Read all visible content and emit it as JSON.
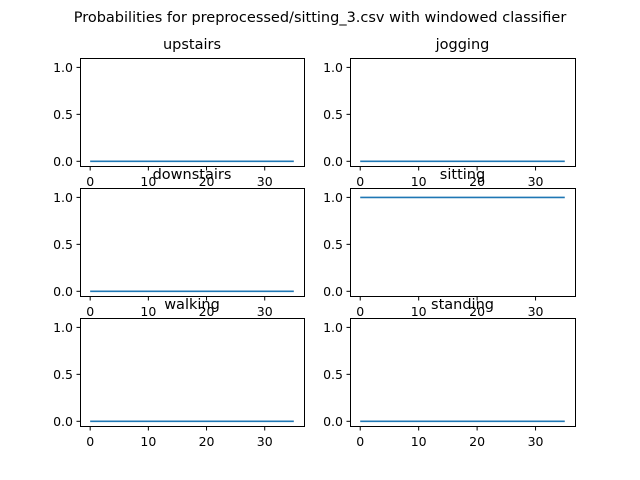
{
  "figure_title": "Probabilities for preprocessed/sitting_3.csv with windowed classifier",
  "colors": {
    "series": "#1f77b4"
  },
  "chart_data": [
    {
      "type": "line",
      "title": "upstairs",
      "x": [
        0,
        35
      ],
      "series": [
        {
          "values": [
            0,
            0
          ]
        }
      ],
      "xlim": [
        -1.75,
        36.75
      ],
      "ylim": [
        -0.05,
        1.1
      ],
      "xticks": [
        0,
        10,
        20,
        30
      ],
      "yticks": [
        0.0,
        0.5,
        1.0
      ],
      "xtick_labels": [
        "0",
        "10",
        "20",
        "30"
      ],
      "ytick_labels": [
        "0.0",
        "0.5",
        "1.0"
      ]
    },
    {
      "type": "line",
      "title": "jogging",
      "x": [
        0,
        35
      ],
      "series": [
        {
          "values": [
            0,
            0
          ]
        }
      ],
      "xlim": [
        -1.75,
        36.75
      ],
      "ylim": [
        -0.05,
        1.1
      ],
      "xticks": [
        0,
        10,
        20,
        30
      ],
      "yticks": [
        0.0,
        0.5,
        1.0
      ],
      "xtick_labels": [
        "0",
        "10",
        "20",
        "30"
      ],
      "ytick_labels": [
        "0.0",
        "0.5",
        "1.0"
      ]
    },
    {
      "type": "line",
      "title": "downstairs",
      "x": [
        0,
        35
      ],
      "series": [
        {
          "values": [
            0,
            0
          ]
        }
      ],
      "xlim": [
        -1.75,
        36.75
      ],
      "ylim": [
        -0.05,
        1.1
      ],
      "xticks": [
        0,
        10,
        20,
        30
      ],
      "yticks": [
        0.0,
        0.5,
        1.0
      ],
      "xtick_labels": [
        "0",
        "10",
        "20",
        "30"
      ],
      "ytick_labels": [
        "0.0",
        "0.5",
        "1.0"
      ]
    },
    {
      "type": "line",
      "title": "sitting",
      "x": [
        0,
        35
      ],
      "series": [
        {
          "values": [
            1,
            1
          ]
        }
      ],
      "xlim": [
        -1.75,
        36.75
      ],
      "ylim": [
        -0.05,
        1.1
      ],
      "xticks": [
        0,
        10,
        20,
        30
      ],
      "yticks": [
        0.0,
        0.5,
        1.0
      ],
      "xtick_labels": [
        "0",
        "10",
        "20",
        "30"
      ],
      "ytick_labels": [
        "0.0",
        "0.5",
        "1.0"
      ]
    },
    {
      "type": "line",
      "title": "walking",
      "x": [
        0,
        35
      ],
      "series": [
        {
          "values": [
            0,
            0
          ]
        }
      ],
      "xlim": [
        -1.75,
        36.75
      ],
      "ylim": [
        -0.05,
        1.1
      ],
      "xticks": [
        0,
        10,
        20,
        30
      ],
      "yticks": [
        0.0,
        0.5,
        1.0
      ],
      "xtick_labels": [
        "0",
        "10",
        "20",
        "30"
      ],
      "ytick_labels": [
        "0.0",
        "0.5",
        "1.0"
      ]
    },
    {
      "type": "line",
      "title": "standing",
      "x": [
        0,
        35
      ],
      "series": [
        {
          "values": [
            0,
            0
          ]
        }
      ],
      "xlim": [
        -1.75,
        36.75
      ],
      "ylim": [
        -0.05,
        1.1
      ],
      "xticks": [
        0,
        10,
        20,
        30
      ],
      "yticks": [
        0.0,
        0.5,
        1.0
      ],
      "xtick_labels": [
        "0",
        "10",
        "20",
        "30"
      ],
      "ytick_labels": [
        "0.0",
        "0.5",
        "1.0"
      ]
    }
  ]
}
